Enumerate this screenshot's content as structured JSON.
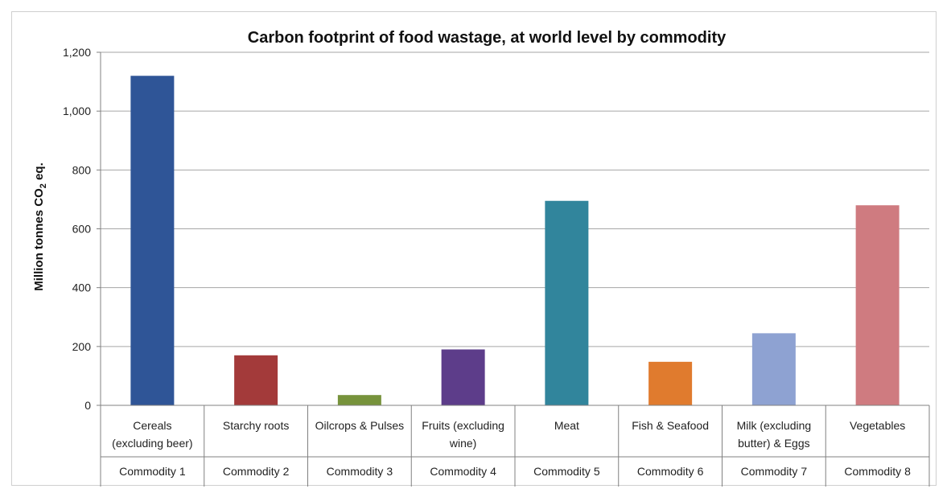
{
  "chart_data": {
    "type": "bar",
    "title": "Carbon footprint of food wastage, at world level by commodity",
    "ylabel": "Million tonnes CO",
    "ylabel_subscript": "2",
    "ylabel_suffix": " eq.",
    "xlabel": "",
    "ylim": [
      0,
      1200
    ],
    "yticks": [
      "0",
      "200",
      "400",
      "600",
      "800",
      "1,000",
      "1,200"
    ],
    "ytick_values": [
      0,
      200,
      400,
      600,
      800,
      1000,
      1200
    ],
    "grid": true,
    "categories": [
      {
        "label_lines": [
          "Cereals",
          "(excluding beer)"
        ],
        "group": "Commodity 1"
      },
      {
        "label_lines": [
          "Starchy roots"
        ],
        "group": "Commodity 2"
      },
      {
        "label_lines": [
          "Oilcrops & Pulses"
        ],
        "group": "Commodity 3"
      },
      {
        "label_lines": [
          "Fruits (excluding",
          "wine)"
        ],
        "group": "Commodity 4"
      },
      {
        "label_lines": [
          "Meat"
        ],
        "group": "Commodity 5"
      },
      {
        "label_lines": [
          "Fish & Seafood"
        ],
        "group": "Commodity 6"
      },
      {
        "label_lines": [
          "Milk (excluding",
          "butter) & Eggs"
        ],
        "group": "Commodity 7"
      },
      {
        "label_lines": [
          "Vegetables"
        ],
        "group": "Commodity 8"
      }
    ],
    "values": [
      1120,
      170,
      35,
      190,
      695,
      148,
      245,
      680
    ],
    "colors": [
      "#2f5597",
      "#a33a3a",
      "#77933c",
      "#5d3d8a",
      "#31859c",
      "#e07b2e",
      "#8ea2d2",
      "#cf7b80"
    ]
  }
}
